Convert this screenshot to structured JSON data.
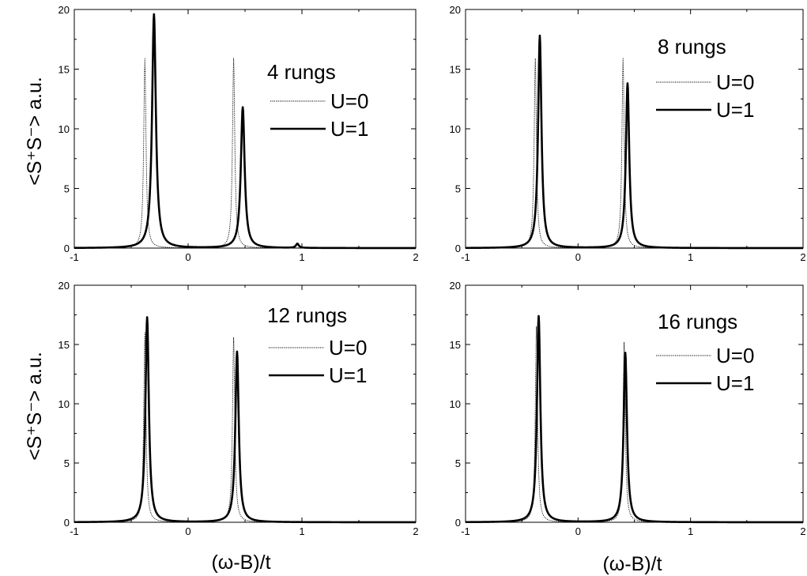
{
  "figure": {
    "ylabel": "<S⁺S⁻> a.u.",
    "xlabel": "(ω-B)/t"
  },
  "chart_data": [
    {
      "type": "line",
      "annotation": "4 rungs",
      "xlim": [
        -1,
        2
      ],
      "ylim": [
        0,
        20
      ],
      "xticks": [
        -1,
        0,
        1,
        2
      ],
      "yticks": [
        0,
        5,
        10,
        15,
        20
      ],
      "series": [
        {
          "name": "U=0",
          "style": "dotted",
          "color": "#000000",
          "peaks": [
            {
              "x": -0.38,
              "height": 15.9,
              "width": 0.012
            },
            {
              "x": 0.4,
              "height": 15.9,
              "width": 0.012
            }
          ]
        },
        {
          "name": "U=1",
          "style": "solid",
          "color": "#000000",
          "peaks": [
            {
              "x": -0.3,
              "height": 19.6,
              "width": 0.02
            },
            {
              "x": 0.48,
              "height": 11.8,
              "width": 0.02
            },
            {
              "x": 0.96,
              "height": 0.35,
              "width": 0.015
            }
          ]
        }
      ]
    },
    {
      "type": "line",
      "annotation": "8 rungs",
      "xlim": [
        -1,
        2
      ],
      "ylim": [
        0,
        20
      ],
      "xticks": [
        -1,
        0,
        1,
        2
      ],
      "yticks": [
        0,
        5,
        10,
        15,
        20
      ],
      "series": [
        {
          "name": "U=0",
          "style": "dotted",
          "color": "#000000",
          "peaks": [
            {
              "x": -0.38,
              "height": 15.9,
              "width": 0.012
            },
            {
              "x": 0.4,
              "height": 15.9,
              "width": 0.012
            }
          ]
        },
        {
          "name": "U=1",
          "style": "solid",
          "color": "#000000",
          "peaks": [
            {
              "x": -0.34,
              "height": 17.8,
              "width": 0.018
            },
            {
              "x": 0.44,
              "height": 13.8,
              "width": 0.018
            }
          ]
        }
      ]
    },
    {
      "type": "line",
      "annotation": "12 rungs",
      "xlim": [
        -1,
        2
      ],
      "ylim": [
        0,
        20
      ],
      "xticks": [
        -1,
        0,
        1,
        2
      ],
      "yticks": [
        0,
        5,
        10,
        15,
        20
      ],
      "series": [
        {
          "name": "U=0",
          "style": "dotted",
          "color": "#000000",
          "peaks": [
            {
              "x": -0.38,
              "height": 16.0,
              "width": 0.012
            },
            {
              "x": 0.4,
              "height": 15.6,
              "width": 0.012
            }
          ]
        },
        {
          "name": "U=1",
          "style": "solid",
          "color": "#000000",
          "peaks": [
            {
              "x": -0.36,
              "height": 17.3,
              "width": 0.018
            },
            {
              "x": 0.43,
              "height": 14.4,
              "width": 0.018
            }
          ]
        }
      ]
    },
    {
      "type": "line",
      "annotation": "16 rungs",
      "xlim": [
        -1,
        2
      ],
      "ylim": [
        0,
        20
      ],
      "xticks": [
        -1,
        0,
        1,
        2
      ],
      "yticks": [
        0,
        5,
        10,
        15,
        20
      ],
      "series": [
        {
          "name": "U=0",
          "style": "dotted",
          "color": "#000000",
          "peaks": [
            {
              "x": -0.37,
              "height": 16.5,
              "width": 0.012
            },
            {
              "x": 0.41,
              "height": 15.2,
              "width": 0.012
            }
          ]
        },
        {
          "name": "U=1",
          "style": "solid",
          "color": "#000000",
          "peaks": [
            {
              "x": -0.35,
              "height": 17.4,
              "width": 0.018
            },
            {
              "x": 0.42,
              "height": 14.3,
              "width": 0.018
            }
          ]
        }
      ]
    }
  ]
}
